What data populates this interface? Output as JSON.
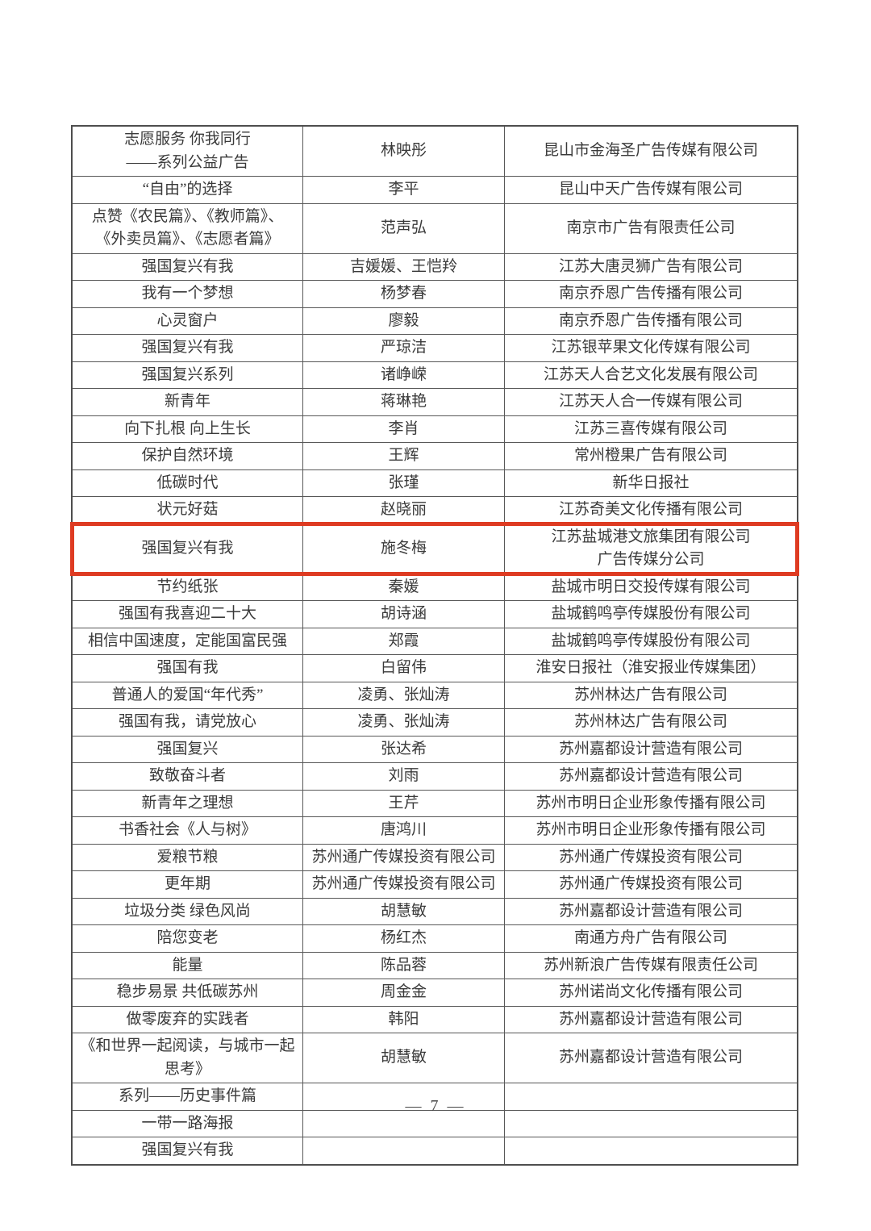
{
  "colors": {
    "highlight_red": "#de3b22",
    "ink": "#3a3a3a",
    "grid_line": "#585858"
  },
  "page": {
    "number_label": "— 7 —"
  },
  "table": {
    "rows": [
      {
        "title": "志愿服务 你我同行\n——系列公益广告",
        "author": "林映彤",
        "company": "昆山市金海圣广告传媒有限公司",
        "highlighted": false
      },
      {
        "title": "“自由”的选择",
        "author": "李平",
        "company": "昆山中天广告传媒有限公司",
        "highlighted": false
      },
      {
        "title": "点赞《农民篇》、《教师篇》、\n《外卖员篇》、《志愿者篇》",
        "author": "范声弘",
        "company": "南京市广告有限责任公司",
        "highlighted": false
      },
      {
        "title": "强国复兴有我",
        "author": "吉媛媛、王恺羚",
        "company": "江苏大唐灵狮广告有限公司",
        "highlighted": false
      },
      {
        "title": "我有一个梦想",
        "author": "杨梦春",
        "company": "南京乔恩广告传播有限公司",
        "highlighted": false
      },
      {
        "title": "心灵窗户",
        "author": "廖毅",
        "company": "南京乔恩广告传播有限公司",
        "highlighted": false
      },
      {
        "title": "强国复兴有我",
        "author": "严琼洁",
        "company": "江苏银苹果文化传媒有限公司",
        "highlighted": false
      },
      {
        "title": "强国复兴系列",
        "author": "诸峥嵘",
        "company": "江苏天人合艺文化发展有限公司",
        "highlighted": false
      },
      {
        "title": "新青年",
        "author": "蒋琳艳",
        "company": "江苏天人合一传媒有限公司",
        "highlighted": false
      },
      {
        "title": "向下扎根 向上生长",
        "author": "李肖",
        "company": "江苏三喜传媒有限公司",
        "highlighted": false
      },
      {
        "title": "保护自然环境",
        "author": "王辉",
        "company": "常州橙果广告有限公司",
        "highlighted": false
      },
      {
        "title": "低碳时代",
        "author": "张瑾",
        "company": "新华日报社",
        "highlighted": false
      },
      {
        "title": "状元好菇",
        "author": "赵晓丽",
        "company": "江苏奇美文化传播有限公司",
        "highlighted": false
      },
      {
        "title": "强国复兴有我",
        "author": "施冬梅",
        "company": "江苏盐城港文旅集团有限公司\n广告传媒分公司",
        "highlighted": true
      },
      {
        "title": "节约纸张",
        "author": "秦媛",
        "company": "盐城市明日交投传媒有限公司",
        "highlighted": false
      },
      {
        "title": "强国有我喜迎二十大",
        "author": "胡诗涵",
        "company": "盐城鹤鸣亭传媒股份有限公司",
        "highlighted": false
      },
      {
        "title": "相信中国速度，定能国富民强",
        "author": "郑霞",
        "company": "盐城鹤鸣亭传媒股份有限公司",
        "highlighted": false
      },
      {
        "title": "强国有我",
        "author": "白留伟",
        "company": "淮安日报社（淮安报业传媒集团）",
        "highlighted": false
      },
      {
        "title": "普通人的爱国“年代秀”",
        "author": "凌勇、张灿涛",
        "company": "苏州林达广告有限公司",
        "highlighted": false
      },
      {
        "title": "强国有我，请党放心",
        "author": "凌勇、张灿涛",
        "company": "苏州林达广告有限公司",
        "highlighted": false
      },
      {
        "title": "强国复兴",
        "author": "张达希",
        "company": "苏州嘉都设计营造有限公司",
        "highlighted": false
      },
      {
        "title": "致敬奋斗者",
        "author": "刘雨",
        "company": "苏州嘉都设计营造有限公司",
        "highlighted": false
      },
      {
        "title": "新青年之理想",
        "author": "王芹",
        "company": "苏州市明日企业形象传播有限公司",
        "highlighted": false
      },
      {
        "title": "书香社会《人与树》",
        "author": "唐鸿川",
        "company": "苏州市明日企业形象传播有限公司",
        "highlighted": false
      },
      {
        "title": "爱粮节粮",
        "author": "苏州通广传媒投资有限公司",
        "company": "苏州通广传媒投资有限公司",
        "highlighted": false
      },
      {
        "title": "更年期",
        "author": "苏州通广传媒投资有限公司",
        "company": "苏州通广传媒投资有限公司",
        "highlighted": false
      },
      {
        "title": "垃圾分类 绿色风尚",
        "author": "胡慧敏",
        "company": "苏州嘉都设计营造有限公司",
        "highlighted": false
      },
      {
        "title": "陪您变老",
        "author": "杨红杰",
        "company": "南通方舟广告有限公司",
        "highlighted": false
      },
      {
        "title": "能量",
        "author": "陈品蓉",
        "company": "苏州新浪广告传媒有限责任公司",
        "highlighted": false
      },
      {
        "title": "稳步易景 共低碳苏州",
        "author": "周金金",
        "company": "苏州诺尚文化传播有限公司",
        "highlighted": false
      },
      {
        "title": "做零废弃的实践者",
        "author": "韩阳",
        "company": "苏州嘉都设计营造有限公司",
        "highlighted": false
      },
      {
        "title": "《和世界一起阅读，与城市一起\n思考》",
        "author": "胡慧敏",
        "company": "苏州嘉都设计营造有限公司",
        "highlighted": false
      },
      {
        "title": "系列——历史事件篇",
        "author": "",
        "company": "",
        "highlighted": false
      },
      {
        "title": "一带一路海报",
        "author": "",
        "company": "",
        "highlighted": false
      },
      {
        "title": "强国复兴有我",
        "author": "",
        "company": "",
        "highlighted": false
      }
    ]
  }
}
